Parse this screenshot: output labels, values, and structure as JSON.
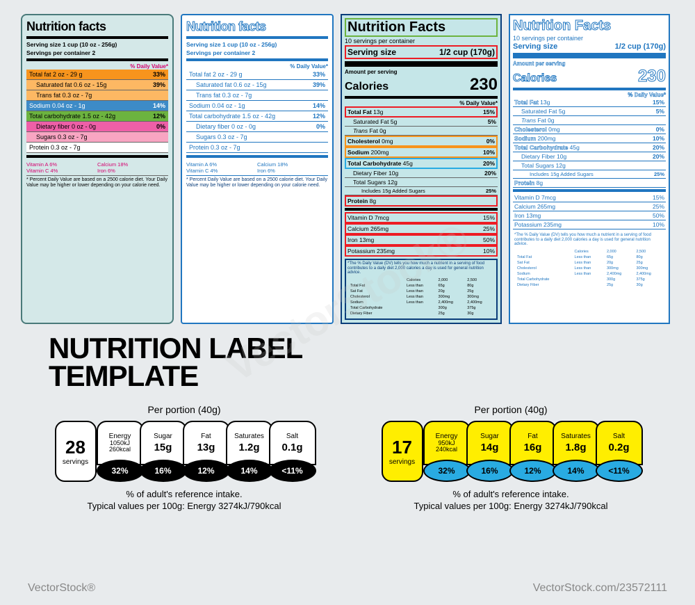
{
  "main_title_l1": "NUTRITION LABEL",
  "main_title_l2": "TEMPLATE",
  "label1": {
    "title": "Nutrition facts",
    "serving1": "Serving size 1 cup (10 oz - 256g)",
    "serving2": "Servings per container 2",
    "dv": "% Daily Value*",
    "rows": [
      {
        "n": "Total fat 2 oz - 29 g",
        "p": "33%",
        "c": "r-orange"
      },
      {
        "n": "Saturated fat 0.6 oz - 15g",
        "p": "39%",
        "c": "r-orange-l"
      },
      {
        "n": "Trans fat 0.3 oz - 7g",
        "p": "",
        "c": "r-orange-l"
      },
      {
        "n": "Sodium 0.04 oz - 1g",
        "p": "14%",
        "c": "r-blue"
      },
      {
        "n": "Total carbohydrate 1.5 oz - 42g",
        "p": "12%",
        "c": "r-green"
      },
      {
        "n": "Dietary fiber 0 oz - 0g",
        "p": "0%",
        "c": "r-pink"
      },
      {
        "n": "Sugars 0.3 oz - 7g",
        "p": "",
        "c": "r-pink2"
      },
      {
        "n": "Protein 0.3 oz - 7g",
        "p": "",
        "c": "r-white"
      }
    ],
    "vit": [
      "Vitamin A  6%",
      "Calcium  18%",
      "Vitamin C  4%",
      "Iron  6%"
    ],
    "disc": "* Percent Daily Value are based on a 2500 calorie diet. Your Daily Value may be higher or lower depending on your calorie need."
  },
  "label2": {
    "title": "Nutrition facts",
    "serving1": "Serving size 1 cup (10 oz - 256g)",
    "serving2": "Servings per container 2",
    "dv": "% Daily Value*",
    "rows": [
      {
        "n": "Total fat 2 oz - 29 g",
        "p": "33%",
        "i": false
      },
      {
        "n": "Saturated fat 0.6 oz - 15g",
        "p": "39%",
        "i": true
      },
      {
        "n": "Trans fat 0.3 oz - 7g",
        "p": "",
        "i": true
      },
      {
        "n": "Sodium 0.04 oz - 1g",
        "p": "14%",
        "i": false
      },
      {
        "n": "Total carbohydrate 1.5 oz - 42g",
        "p": "12%",
        "i": false
      },
      {
        "n": "Dietary fiber 0 oz - 0g",
        "p": "0%",
        "i": true
      },
      {
        "n": "Sugars 0.3 oz - 7g",
        "p": "",
        "i": true
      },
      {
        "n": "Protein 0.3 oz - 7g",
        "p": "",
        "i": false
      }
    ],
    "vit": [
      "Vitamin A  6%",
      "Calcium  18%",
      "Vitamin C  4%",
      "Iron  6%"
    ],
    "disc": "* Percent Daily Value are based on a 2500 calorie diet. Your Daily Value may be higher or lower depending on your calorie need."
  },
  "label3": {
    "title": "Nutrition Facts",
    "servings_per": "10 servings per container",
    "serving_size_l": "Serving size",
    "serving_size_r": "1/2 cup (170g)",
    "amt": "Amount per serving",
    "cal_l": "Calories",
    "cal_v": "230",
    "dv": "% Daily Value*",
    "rows": [
      {
        "n": "<b>Total Fat</b> 13g",
        "p": "15%",
        "c": "box-red"
      },
      {
        "n": "Saturated Fat  5g",
        "p": "5%",
        "c": "indent"
      },
      {
        "n": "<i>Trans</i> Fat 0g",
        "p": "",
        "c": "indent"
      },
      {
        "n": "<b>Cholesterol</b>  0mg",
        "p": "0%",
        "c": "box-orange"
      },
      {
        "n": "<b>Sodium</b>  200mg",
        "p": "10%",
        "c": "box-orange"
      },
      {
        "n": "<b>Total Carbohydrate</b>  45g",
        "p": "20%",
        "c": "box-cyan"
      },
      {
        "n": "Dietary Fiber 10g",
        "p": "20%",
        "c": "indent"
      },
      {
        "n": "Total Sugars 12g",
        "p": "",
        "c": "indent"
      },
      {
        "n": "Includes 15g Added Sugars",
        "p": "25%",
        "c": "indent2"
      },
      {
        "n": "<b>Protein</b> 8g",
        "p": "",
        "c": "box-red"
      }
    ],
    "vitamins": [
      {
        "n": "Vitamin D 7mcg",
        "p": "15%"
      },
      {
        "n": "Calcium 265mg",
        "p": "25%"
      },
      {
        "n": "Iron 13mg",
        "p": "50%"
      },
      {
        "n": "Potassium 235mg",
        "p": "10%"
      }
    ],
    "fn_text": "*The % Daily Value (DV) tells you how much a nutrient in a serving of food contributes to a daily diet 2,000 calories a day is used for general nutrition advice.",
    "fn_table": [
      [
        "",
        "Calories",
        "2,000",
        "2,500"
      ],
      [
        "Total Fat",
        "Less than",
        "65g",
        "80g"
      ],
      [
        "Sat Fat",
        "Less than",
        "20g",
        "25g"
      ],
      [
        "Cholesterol",
        "Less than",
        "300mg",
        "300mg"
      ],
      [
        "Sodium",
        "Less than",
        "2,400mg",
        "2,400mg"
      ],
      [
        "Total Carbohydrate",
        "",
        "300g",
        "375g"
      ],
      [
        "Dietary Fiber",
        "",
        "25g",
        "30g"
      ]
    ]
  },
  "traffic1": {
    "portion": "Per portion (40g)",
    "servings_n": "28",
    "servings_l": "servings",
    "serv_bg": "#ffffff",
    "pills": [
      {
        "name": "Energy",
        "val": "1050kJ",
        "val2": "260kcal",
        "pct": "32%",
        "bg": "#ffffff"
      },
      {
        "name": "Sugar",
        "val": "15g",
        "pct": "16%",
        "bg": "#ffffff"
      },
      {
        "name": "Fat",
        "val": "13g",
        "pct": "12%",
        "bg": "#ffffff"
      },
      {
        "name": "Saturates",
        "val": "1.2g",
        "pct": "14%",
        "bg": "#ffffff"
      },
      {
        "name": "Salt",
        "val": "0.1g",
        "pct": "<11%",
        "bg": "#ffffff"
      }
    ],
    "bot_bg": "#000000",
    "bot_fg": "#ffffff",
    "ref1": "% of adult's reference intake.",
    "ref2": "Typical values per 100g: Energy 3274kJ/790kcal"
  },
  "traffic2": {
    "portion": "Per portion (40g)",
    "servings_n": "17",
    "servings_l": "servings",
    "serv_bg": "#ffee00",
    "pills": [
      {
        "name": "Energy",
        "val": "950kJ",
        "val2": "240kcal",
        "pct": "32%",
        "bg": "#ffee00"
      },
      {
        "name": "Sugar",
        "val": "14g",
        "pct": "16%",
        "bg": "#ffee00"
      },
      {
        "name": "Fat",
        "val": "16g",
        "pct": "12%",
        "bg": "#ffee00"
      },
      {
        "name": "Saturates",
        "val": "1.8g",
        "pct": "14%",
        "bg": "#ffee00"
      },
      {
        "name": "Salt",
        "val": "0.2g",
        "pct": "<11%",
        "bg": "#ffee00"
      }
    ],
    "bot_bg": "#29abe2",
    "bot_fg": "#000000",
    "ref1": "% of adult's reference intake.",
    "ref2": "Typical values per 100g: Energy 3274kJ/790kcal"
  },
  "watermark1": "VectorStock®",
  "watermark2": "VectorStock.com/23572111"
}
